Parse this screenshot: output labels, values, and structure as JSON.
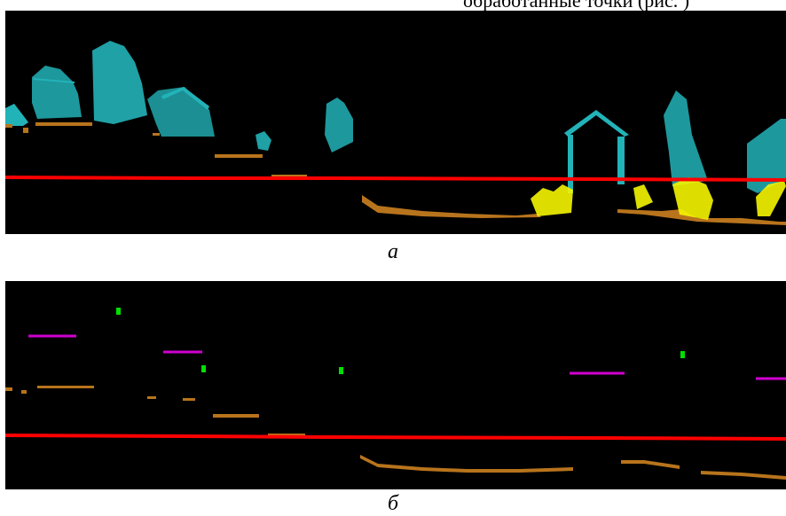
{
  "top_caption_fragment": "обработанные точки (рис. )",
  "panels": [
    {
      "label": "a",
      "colors": {
        "background": "#000000",
        "ground_line": "#ff0000",
        "ground_points": "#b8741c",
        "vegetation_buildings": "#22b3b8",
        "objects": "#f5f500"
      }
    },
    {
      "label": "б",
      "colors": {
        "background": "#000000",
        "ground_line": "#ff0000",
        "ground_points": "#b8741c",
        "markers_green": "#00e000",
        "markers_magenta": "#d100d1"
      }
    }
  ]
}
